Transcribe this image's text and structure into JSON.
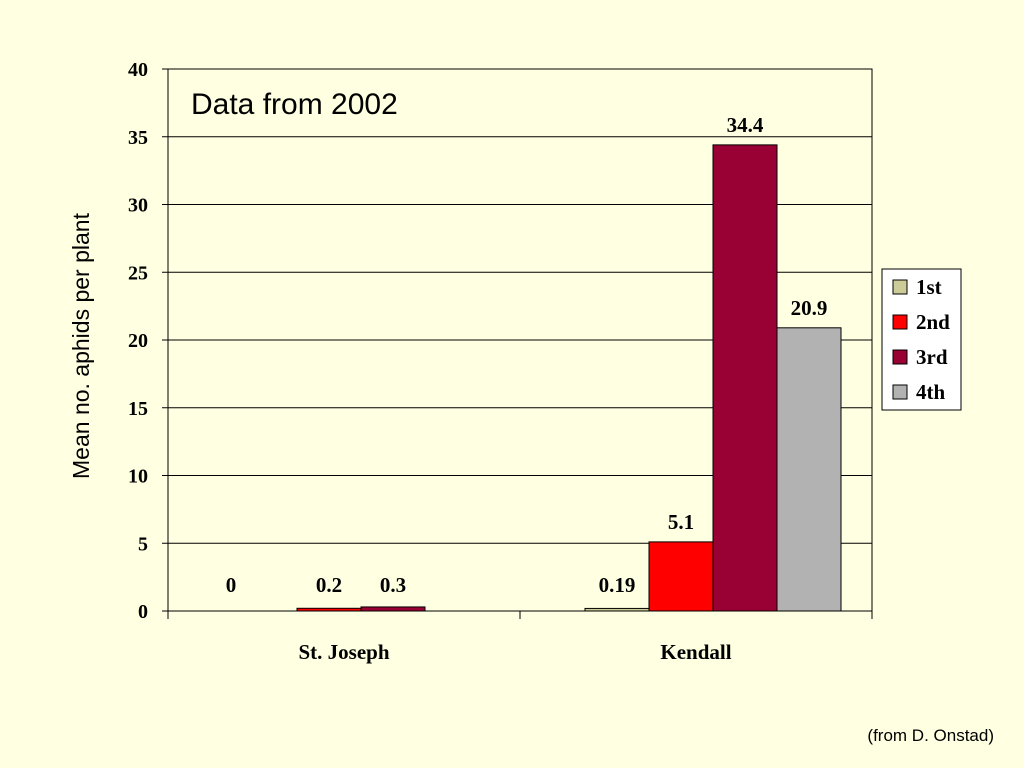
{
  "chart_data": {
    "type": "bar",
    "title": "Data from 2002",
    "ylabel": "Mean no. aphids per plant",
    "xlabel": "",
    "categories": [
      "St. Joseph",
      "Kendall"
    ],
    "ylim": [
      0,
      40
    ],
    "yticks": [
      0,
      5,
      10,
      15,
      20,
      25,
      30,
      35,
      40
    ],
    "grid": true,
    "legend_position": "right",
    "series": [
      {
        "name": "1st",
        "color": "#CCCC99",
        "values": [
          0,
          0.19
        ],
        "labels": [
          "0",
          "0.19"
        ]
      },
      {
        "name": "2nd",
        "color": "#FF0000",
        "values": [
          0.2,
          5.1
        ],
        "labels": [
          "0.2",
          "5.1"
        ]
      },
      {
        "name": "3rd",
        "color": "#990033",
        "values": [
          0.3,
          34.4
        ],
        "labels": [
          "0.3",
          "34.4"
        ]
      },
      {
        "name": "4th",
        "color": "#B2B2B2",
        "values": [
          null,
          20.9
        ],
        "labels": [
          null,
          "20.9"
        ]
      }
    ]
  },
  "credit": "(from D. Onstad)"
}
